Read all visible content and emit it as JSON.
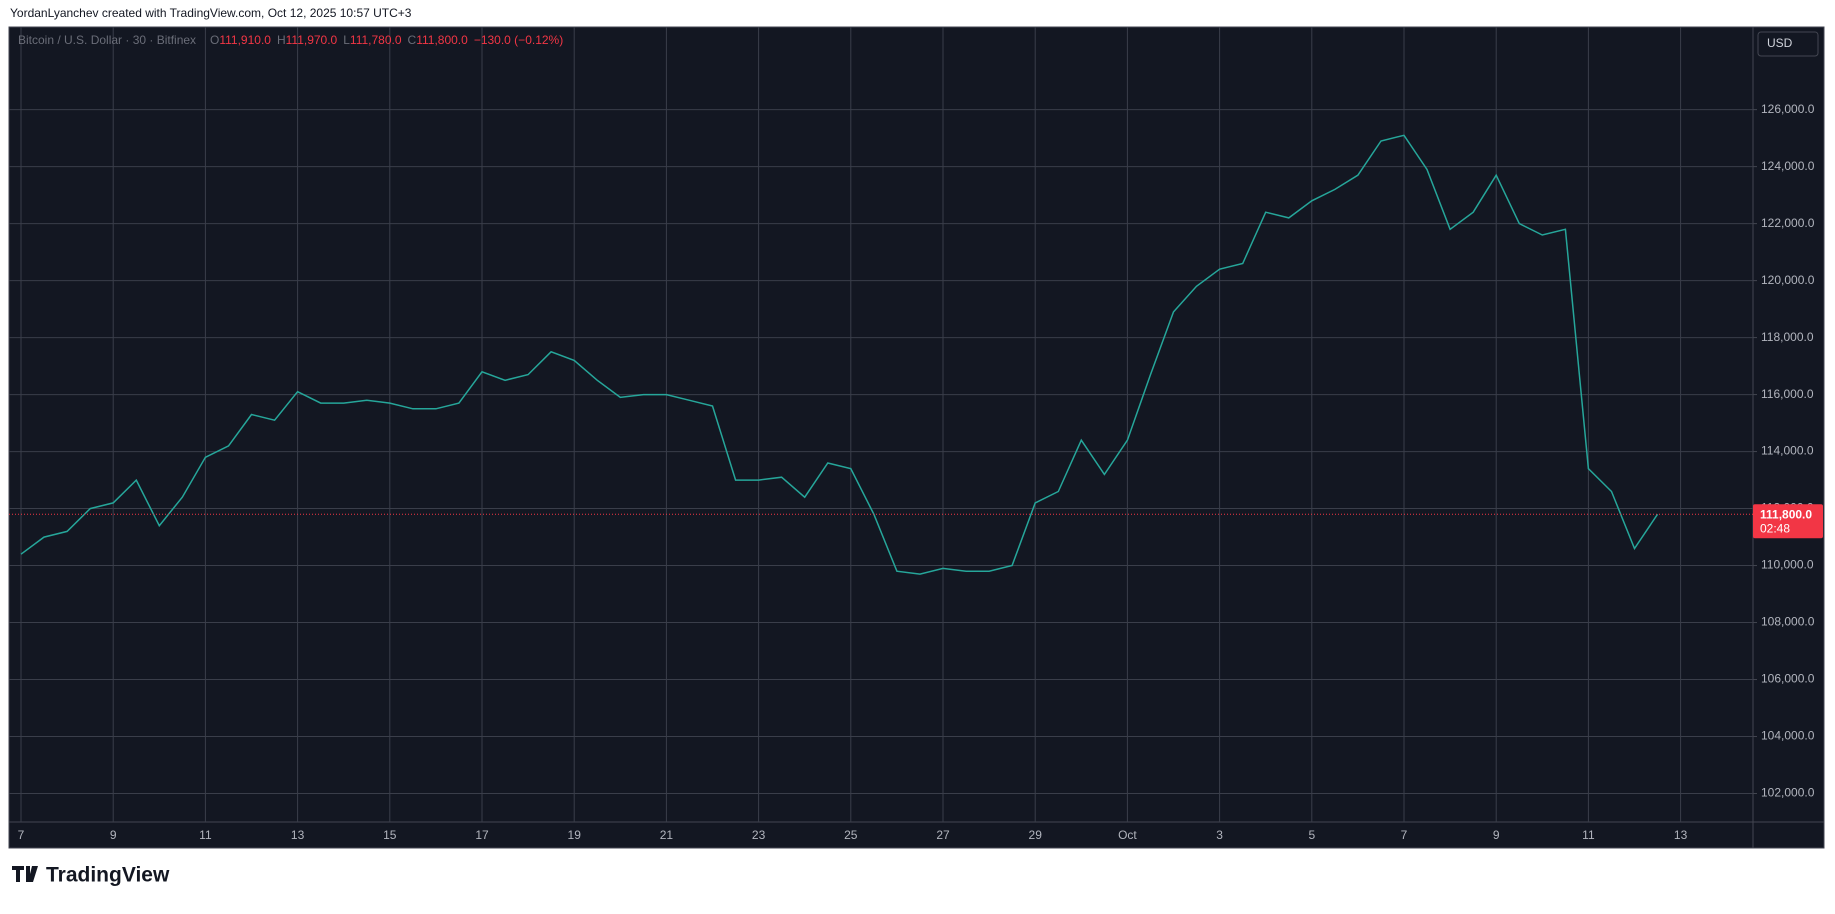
{
  "header": {
    "text": "YordanLyanchev created with TradingView.com, Oct 12, 2025 10:57 UTC+3"
  },
  "chart_data": {
    "type": "line",
    "symbol": "Bitcoin / U.S. Dollar · 30 · Bitfinex",
    "ohlc_text": [
      "O",
      "111,910.0",
      "H",
      "111,970.0",
      "L",
      "111,780.0",
      "C",
      "111,800.0",
      "−130.0 (−0.12%)"
    ],
    "currency": "USD",
    "color": "#26a69a",
    "categories": [
      "7",
      null,
      null,
      null,
      "9",
      null,
      null,
      null,
      "11",
      null,
      null,
      null,
      "13",
      null,
      null,
      null,
      "15",
      null,
      null,
      null,
      "17",
      null,
      null,
      null,
      "19",
      null,
      null,
      null,
      "21",
      null,
      null,
      null,
      "23",
      null,
      null,
      null,
      "25",
      null,
      null,
      null,
      "27",
      null,
      null,
      null,
      "29",
      null,
      null,
      null,
      "Oct",
      null,
      null,
      null,
      "3",
      null,
      null,
      null,
      "5",
      null,
      null,
      null,
      "7",
      null,
      null,
      null,
      "9",
      null,
      null,
      null,
      "11",
      null,
      null,
      null,
      "13"
    ],
    "values": [
      110400,
      111000,
      111200,
      112000,
      112200,
      113000,
      111400,
      112400,
      113800,
      114200,
      115300,
      115100,
      116100,
      115700,
      115700,
      115800,
      115700,
      115500,
      115500,
      115700,
      116800,
      116500,
      116700,
      117500,
      117200,
      116500,
      115900,
      116000,
      116000,
      115800,
      115600,
      113000,
      113000,
      113100,
      112400,
      113600,
      113400,
      111800,
      109800,
      109700,
      109900,
      109800,
      109800,
      110000,
      112200,
      112600,
      114400,
      113200,
      114400,
      116700,
      118900,
      119800,
      120400,
      120600,
      122400,
      122200,
      122800,
      123200,
      123700,
      124900,
      125100,
      123900,
      121800,
      122400,
      123700,
      122000,
      121600,
      121800,
      113400,
      112600,
      110600,
      111800,
      null
    ],
    "ylim": [
      101000,
      128900
    ],
    "yticks": [
      {
        "value": 102000,
        "label": "102,000.0"
      },
      {
        "value": 104000,
        "label": "104,000.0"
      },
      {
        "value": 106000,
        "label": "106,000.0"
      },
      {
        "value": 108000,
        "label": "108,000.0"
      },
      {
        "value": 110000,
        "label": "110,000.0"
      },
      {
        "value": 112000,
        "label": "112,000.0"
      },
      {
        "value": 114000,
        "label": "114,000.0"
      },
      {
        "value": 116000,
        "label": "116,000.0"
      },
      {
        "value": 118000,
        "label": "118,000.0"
      },
      {
        "value": 120000,
        "label": "120,000.0"
      },
      {
        "value": 122000,
        "label": "122,000.0"
      },
      {
        "value": 124000,
        "label": "124,000.0"
      },
      {
        "value": 126000,
        "label": "126,000.0"
      }
    ],
    "grid": true,
    "last_price": {
      "value": 111800,
      "label": "111,800.0"
    },
    "last_price_color": "#f23645",
    "countdown": "02:48"
  },
  "brand": "TradingView"
}
